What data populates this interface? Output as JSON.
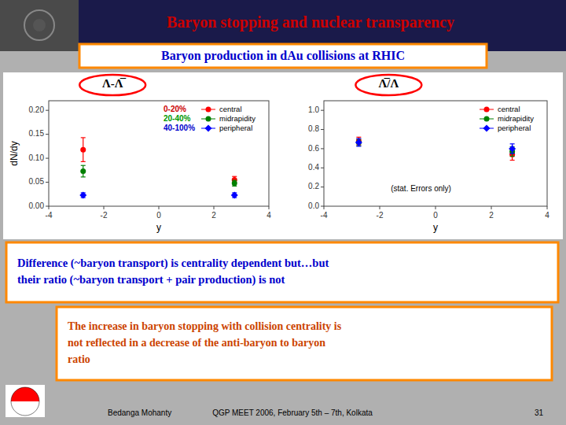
{
  "title": "Baryon stopping and nuclear transparency",
  "subtitle": "Baryon production in dAu collisions at RHIC",
  "chart_data": [
    {
      "type": "scatter",
      "title": "Λ-Λ̅",
      "xlabel": "y",
      "ylabel": "dN/dy",
      "xlim": [
        -4,
        4
      ],
      "xticks": [
        -4,
        -2,
        0,
        2,
        4
      ],
      "ylim": [
        0,
        0.22
      ],
      "yticks": [
        {
          "value": 0,
          "label": "0.00"
        },
        {
          "value": 0.05,
          "label": "0.05"
        },
        {
          "value": 0.1,
          "label": "0.10"
        },
        {
          "value": 0.15,
          "label": "0.15"
        },
        {
          "value": 0.2,
          "label": "0.20"
        }
      ],
      "grid": false,
      "legend": "upper-right",
      "series": [
        {
          "name": "central",
          "color": "red",
          "marker": "circle",
          "x": [
            -2.75,
            2.75
          ],
          "values": [
            0.118,
            0.055
          ],
          "errors": [
            0.025,
            0.007
          ]
        },
        {
          "name": "midrapidity",
          "color": "green",
          "marker": "circle",
          "x": [
            -2.75,
            2.75
          ],
          "values": [
            0.073,
            0.048
          ],
          "errors": [
            0.012,
            0.006
          ]
        },
        {
          "name": "peripheral",
          "color": "blue",
          "marker": "diamond",
          "x": [
            -2.75,
            2.75
          ],
          "values": [
            0.023,
            0.023
          ],
          "errors": [
            0.005,
            0.005
          ]
        }
      ],
      "annotations": [
        {
          "text": "0-20%",
          "color": "#cc0000"
        },
        {
          "text": "20-40%",
          "color": "#009900"
        },
        {
          "text": "40-100%",
          "color": "#0000cc"
        }
      ]
    },
    {
      "type": "scatter",
      "title": "Λ̅/Λ",
      "xlabel": "y",
      "xlim": [
        -4,
        4
      ],
      "xticks": [
        -4,
        -2,
        0,
        2,
        4
      ],
      "ylim": [
        0,
        1.1
      ],
      "yticks": [
        {
          "value": 0,
          "label": "0.0"
        },
        {
          "value": 0.2,
          "label": "0.2"
        },
        {
          "value": 0.4,
          "label": "0.4"
        },
        {
          "value": 0.6,
          "label": "0.6"
        },
        {
          "value": 0.8,
          "label": "0.8"
        },
        {
          "value": 1.0,
          "label": "1.0"
        }
      ],
      "grid": false,
      "legend": "upper-right",
      "series": [
        {
          "name": "central",
          "color": "red",
          "marker": "circle",
          "x": [
            -2.75,
            2.75
          ],
          "values": [
            0.68,
            0.54
          ],
          "errors": [
            0.04,
            0.06
          ]
        },
        {
          "name": "midrapidity",
          "color": "green",
          "marker": "circle",
          "x": [
            -2.75,
            2.75
          ],
          "values": [
            0.665,
            0.57
          ],
          "errors": [
            0.035,
            0.05
          ]
        },
        {
          "name": "peripheral",
          "color": "blue",
          "marker": "diamond",
          "x": [
            -2.75,
            2.75
          ],
          "values": [
            0.665,
            0.6
          ],
          "errors": [
            0.04,
            0.05
          ]
        }
      ],
      "annotations": [
        {
          "text": "(stat. Errors only)"
        }
      ]
    }
  ],
  "text_boxes": [
    {
      "text": "Difference (~baryon transport) is centrality dependent but…but\ntheir ratio (~baryon transport + pair production) is not",
      "color": "#0000cc"
    },
    {
      "text": "The increase in baryon stopping with collision centrality is\nnot reflected in a decrease of the anti-baryon to baryon\nratio",
      "color": "#cc4400"
    }
  ],
  "footer": [
    "Bedanga Mohanty",
    "QGP MEET 2006, February 5th – 7th, Kolkata",
    "31"
  ]
}
